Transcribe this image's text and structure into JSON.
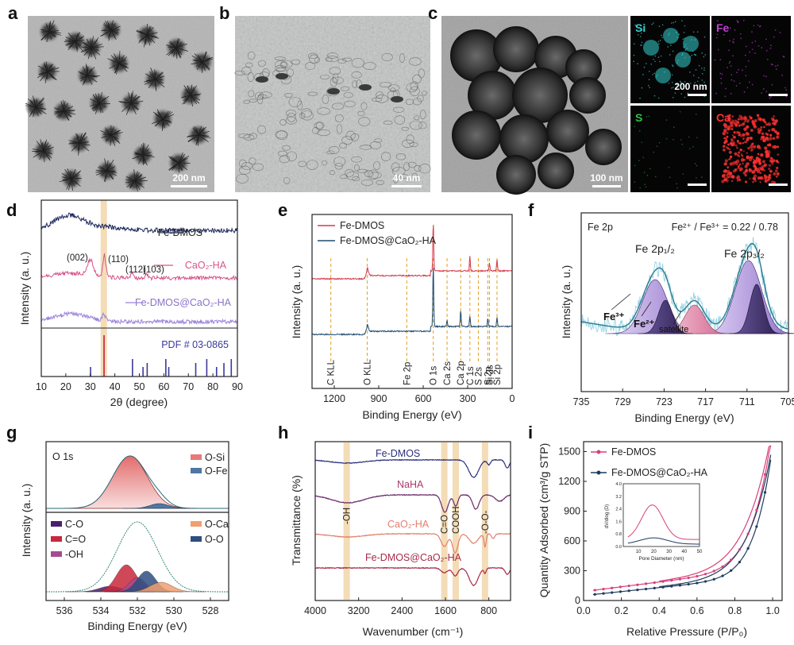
{
  "panel_letters": [
    "a",
    "b",
    "c",
    "d",
    "e",
    "f",
    "g",
    "h",
    "i"
  ],
  "micrographs": {
    "a": {
      "scale_bar": "200 nm"
    },
    "b": {
      "scale_bar": "40 nm"
    },
    "c": {
      "scale_bar": "100 nm"
    },
    "maps": [
      {
        "element": "Si",
        "color": "#35d0d0",
        "scale_bar": "200 nm"
      },
      {
        "element": "Fe",
        "color": "#c040d0",
        "scale_bar": ""
      },
      {
        "element": "S",
        "color": "#30c040",
        "scale_bar": ""
      },
      {
        "element": "Ca",
        "color": "#ff3030",
        "scale_bar": ""
      }
    ]
  },
  "colors": {
    "dark": "#1e2a5e",
    "pink": "#d8558a",
    "lavender": "#9a82d8",
    "red": "#d63a4a",
    "navy": "#2c4f7a",
    "purple": "#7a3a8a",
    "highlight": "#f3dcb6"
  },
  "chart_data": [
    {
      "id": "d",
      "type": "line",
      "xlabel": "2θ (degree)",
      "ylabel": "Intensity (a. u.)",
      "xlim": [
        10,
        90
      ],
      "xticks": [
        "10",
        "20",
        "30",
        "40",
        "50",
        "60",
        "70",
        "80",
        "90"
      ],
      "highlight_x": 35.5,
      "series": [
        {
          "name": "Fe-DMOS"
        },
        {
          "name": "CaO₂-HA"
        },
        {
          "name": "Fe-DMOS@CaO₂-HA"
        }
      ],
      "peak_labels": [
        "(002)",
        "(110)",
        "(112)",
        "(103)"
      ],
      "reference": {
        "name": "PDF # 03-0865",
        "peaks": [
          30.1,
          35.6,
          47.2,
          51.5,
          53.2,
          60.8,
          62.0,
          73.0,
          77.5,
          81.5,
          84.5,
          87.5
        ]
      }
    },
    {
      "id": "e",
      "type": "line",
      "xlabel": "Binding Energy (eV)",
      "ylabel": "Intensity (a. u.)",
      "xlim": [
        1350,
        0
      ],
      "xticks": [
        "1200",
        "900",
        "600",
        "300",
        "0"
      ],
      "series": [
        {
          "name": "Fe-DMOS"
        },
        {
          "name": "Fe-DMOS@CaO₂-HA"
        }
      ],
      "peaks": [
        {
          "label": "C KLL",
          "x": 1223
        },
        {
          "label": "O KLL",
          "x": 978
        },
        {
          "label": "Fe 2p",
          "x": 711
        },
        {
          "label": "O 1s",
          "x": 532
        },
        {
          "label": "Ca 2s",
          "x": 439
        },
        {
          "label": "Ca 2p",
          "x": 347
        },
        {
          "label": "C 1s",
          "x": 285
        },
        {
          "label": "S 2s",
          "x": 228
        },
        {
          "label": "S 2p",
          "x": 164
        },
        {
          "label": "Si 2s",
          "x": 153
        },
        {
          "label": "Si 2p",
          "x": 102
        }
      ]
    },
    {
      "id": "f",
      "type": "area",
      "xlabel": "Binding Energy (eV)",
      "ylabel": "Intensity (a. u.)",
      "xlim": [
        735,
        705
      ],
      "xticks": [
        "735",
        "729",
        "723",
        "717",
        "711",
        "705"
      ],
      "title": "Fe 2p",
      "ratio_label": "Fe²⁺ / Fe³⁺ = 0.22 / 0.78",
      "peak_labels": [
        "Fe 2p₁/₂",
        "Fe 2p₃/₂"
      ],
      "component_labels": [
        "Fe³⁺",
        "Fe²⁺",
        "satellite"
      ]
    },
    {
      "id": "g",
      "type": "area",
      "xlabel": "Binding Energy (eV)",
      "ylabel": "Intensity (a. u.)",
      "xlim": [
        537,
        527
      ],
      "xticks": [
        "536",
        "534",
        "532",
        "530",
        "528"
      ],
      "title": "O 1s",
      "legend_top": [
        {
          "name": "O-Si",
          "color": "#e8787a"
        },
        {
          "name": "O-Fe",
          "color": "#4e77a3"
        }
      ],
      "legend_bottom": [
        {
          "name": "C-O",
          "color": "#4a1f6e"
        },
        {
          "name": "C=O",
          "color": "#c8283c"
        },
        {
          "name": "-OH",
          "color": "#a84a8e"
        },
        {
          "name": "O-Ca",
          "color": "#f0a070"
        },
        {
          "name": "O-O",
          "color": "#2e4e80"
        }
      ]
    },
    {
      "id": "h",
      "type": "line",
      "xlabel": "Wavenumber (cm⁻¹)",
      "ylabel": "Transmittance (%)",
      "xlim": [
        4000,
        400
      ],
      "xticks": [
        "4000",
        "3200",
        "2400",
        "1600",
        "800"
      ],
      "series": [
        {
          "name": "Fe-DMOS"
        },
        {
          "name": "NaHA"
        },
        {
          "name": "CaO₂-HA"
        },
        {
          "name": "Fe-DMOS@CaO₂-HA"
        }
      ],
      "bands": [
        {
          "label": "-OH",
          "x": 3420
        },
        {
          "label": "C=O",
          "x": 1620
        },
        {
          "label": "COOH",
          "x": 1410
        },
        {
          "label": "-O-O-",
          "x": 870
        }
      ]
    },
    {
      "id": "i",
      "type": "line",
      "xlabel": "Relative Pressure (P/P₀)",
      "ylabel": "Quantity Adsorbed (cm³/g STP)",
      "xlim": [
        0,
        1.05
      ],
      "ylim": [
        0,
        1600
      ],
      "xticks": [
        "0.0",
        "0.2",
        "0.4",
        "0.6",
        "0.8",
        "1.0"
      ],
      "yticks": [
        "0",
        "300",
        "600",
        "900",
        "1200",
        "1500"
      ],
      "series": [
        {
          "name": "Fe-DMOS"
        },
        {
          "name": "Fe-DMOS@CaO₂-HA"
        }
      ],
      "inset": {
        "xlabel": "Pore Diameter (nm)",
        "ylabel": "dV/dlog (D)",
        "xticks": [
          "10",
          "20",
          "30",
          "40",
          "50"
        ],
        "yticks": [
          "0.0",
          "0.8",
          "1.6",
          "2.4",
          "3.2",
          "4.0"
        ]
      }
    }
  ]
}
